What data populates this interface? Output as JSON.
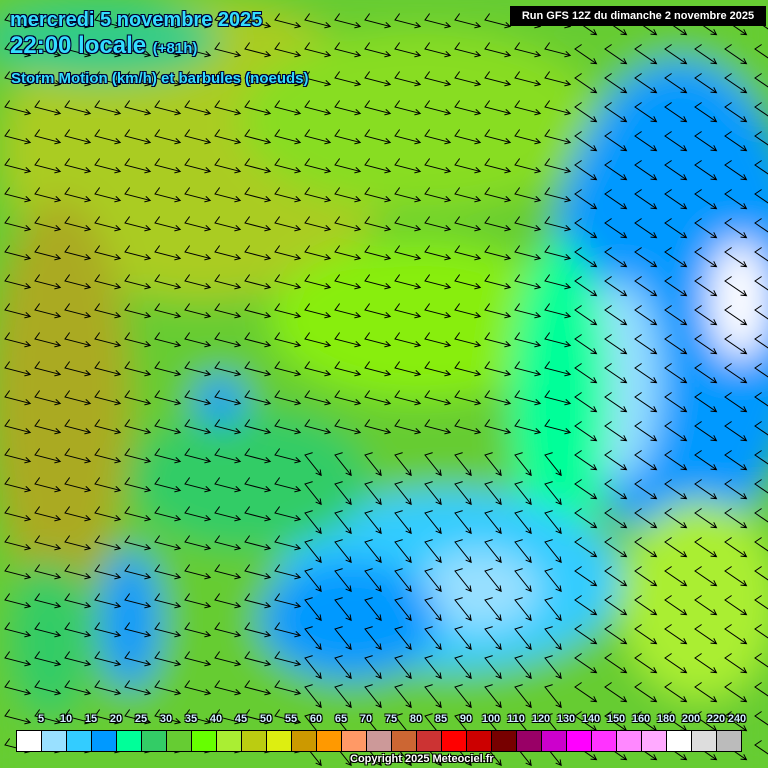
{
  "header": {
    "date": "mercredi 5 novembre 2025",
    "time": "22:00 locale",
    "lead": "(+81h)",
    "parameter": "Storm Motion (km/h) et barbules (noeuds)",
    "run": "Run GFS 12Z du dimanche 2 novembre 2025"
  },
  "legend": {
    "labels": [
      "5",
      "10",
      "15",
      "20",
      "25",
      "30",
      "35",
      "40",
      "45",
      "50",
      "55",
      "60",
      "65",
      "70",
      "75",
      "80",
      "85",
      "90",
      "100",
      "110",
      "120",
      "130",
      "140",
      "150",
      "160",
      "180",
      "200",
      "220",
      "240"
    ],
    "colors": [
      "#ffffff",
      "#99e0ff",
      "#33ccff",
      "#0099ff",
      "#00ff99",
      "#33cc66",
      "#66cc33",
      "#66ff00",
      "#aaee33",
      "#bbcc11",
      "#ddee11",
      "#cc9900",
      "#ff9900",
      "#ff9966",
      "#cc9999",
      "#cc6633",
      "#cc3333",
      "#ff0000",
      "#cc0000",
      "#770000",
      "#990066",
      "#cc00cc",
      "#ff00ff",
      "#ff33ff",
      "#ff88ff",
      "#ffaaff",
      "#ffffff",
      "#dddddd",
      "#bbbbbb"
    ]
  },
  "copyright": "Copyright 2025 Meteociel.fr"
}
